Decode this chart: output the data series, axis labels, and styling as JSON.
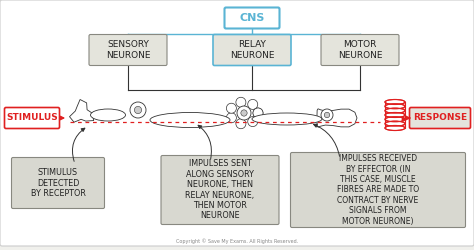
{
  "bg_color": "#f0f0ec",
  "white": "#ffffff",
  "red_color": "#e02020",
  "cns_blue": "#5ab4d4",
  "box_gray_fc": "#d8d8d0",
  "box_gray_ec": "#888880",
  "top_box_fc": "#e4e4dc",
  "top_box_ec": "#888880",
  "black": "#333333",
  "copyright": "Copyright © Save My Exams. All Rights Reserved.",
  "cns_text": "CNS",
  "sensory_text": "SENSORY\nNEURONE",
  "relay_text": "RELAY\nNEURONE",
  "motor_text": "MOTOR\nNEURONE",
  "stimulus_text": "STIMULUS",
  "response_text": "RESPONSE",
  "bb1_text": "STIMULUS\nDETECTED\nBY RECEPTOR",
  "bb2_text": "IMPULSES SENT\nALONG SENSORY\nNEURONE, THEN\nRELAY NEURONE,\nTHEN MOTOR\nNEURONE",
  "bb3_text": "IMPULSES RECEIVED\nBY EFFECTOR (IN\nTHIS CASE, MUSCLE\nFIBRES ARE MADE TO\nCONTRACT BY NERVE\nSIGNALS FROM\nMOTOR NEURONE)"
}
